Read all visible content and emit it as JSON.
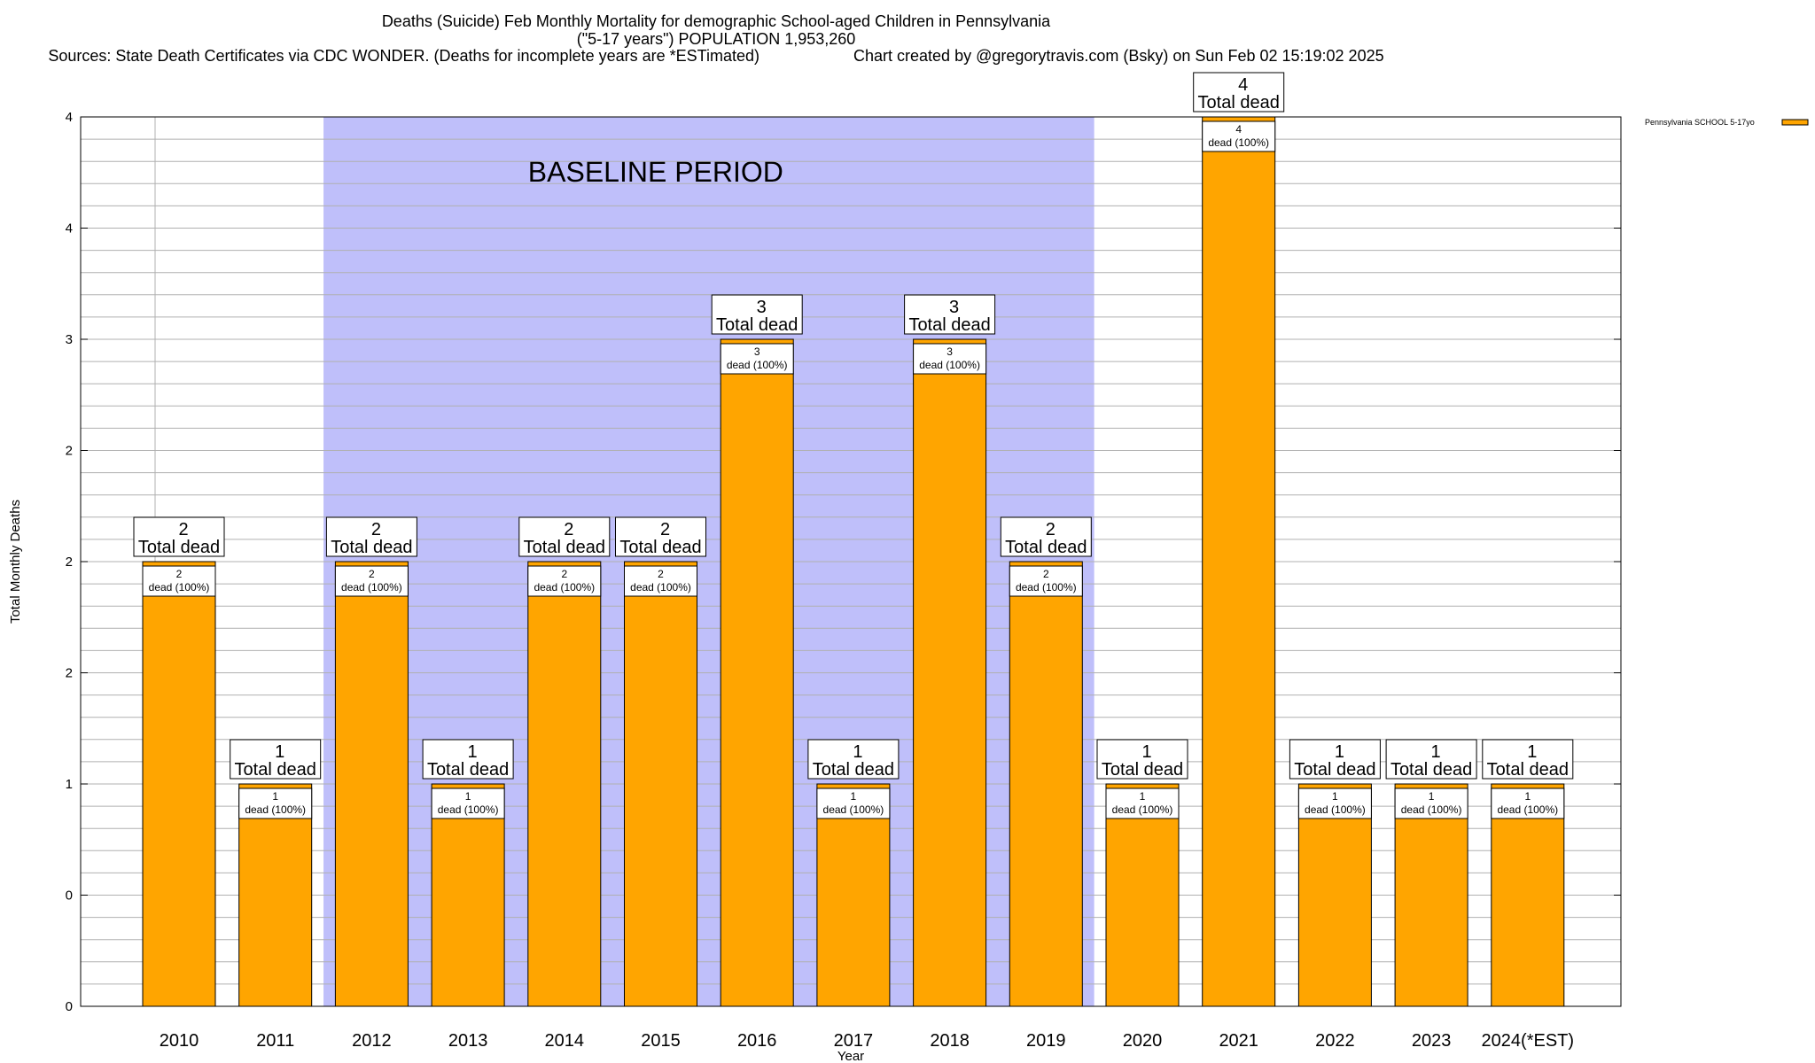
{
  "header": {
    "title_line1": "Deaths (Suicide) Feb Monthly Mortality for demographic School-aged Children in Pennsylvania",
    "title_line2": "(\"5-17 years\") POPULATION 1,953,260",
    "sources": "Sources: State Death Certificates via CDC WONDER. (Deaths for incomplete years are *ESTimated)",
    "credit": "Chart created by @gregorytravis.com (Bsky) on Sun Feb 02 15:19:02 2025"
  },
  "chart_data": {
    "type": "bar",
    "categories": [
      "2010",
      "2011",
      "2012",
      "2013",
      "2014",
      "2015",
      "2016",
      "2017",
      "2018",
      "2019",
      "2020",
      "2021",
      "2022",
      "2023",
      "2024(*EST)"
    ],
    "series": [
      {
        "name": "Pennsylvania SCHOOL 5-17yo",
        "values": [
          2,
          1,
          2,
          1,
          2,
          2,
          3,
          1,
          3,
          2,
          1,
          4,
          1,
          1,
          1
        ]
      }
    ],
    "total_labels": [
      "2",
      "1",
      "2",
      "1",
      "2",
      "2",
      "3",
      "1",
      "3",
      "2",
      "1",
      "4",
      "1",
      "1",
      "1"
    ],
    "total_suffix": "Total dead",
    "segment_labels": [
      "2",
      "1",
      "2",
      "1",
      "2",
      "2",
      "3",
      "1",
      "3",
      "2",
      "1",
      "4",
      "1",
      "1",
      "1"
    ],
    "segment_suffix": "dead (100%)",
    "xlabel": "Year",
    "ylabel": "Total Monthly Deaths",
    "ylim": [
      0,
      4
    ],
    "y_tick_positions": [
      0,
      0.5,
      1,
      1.5,
      2,
      2.5,
      3,
      3.5,
      4
    ],
    "y_tick_labels": [
      "0",
      "0",
      "1",
      "2",
      "2",
      "2",
      "3",
      "4",
      "4"
    ],
    "minor_grid_step": 0.1,
    "grid": true,
    "legend_position": "top-right",
    "annotations": [
      {
        "text": "BASELINE PERIOD",
        "from": "2012",
        "to": "2019"
      }
    ],
    "colors": {
      "bar_fill": "#FFA500",
      "baseline_band": "#BFBFFA",
      "grid": "#B0B0B0",
      "axis": "#000000"
    }
  }
}
